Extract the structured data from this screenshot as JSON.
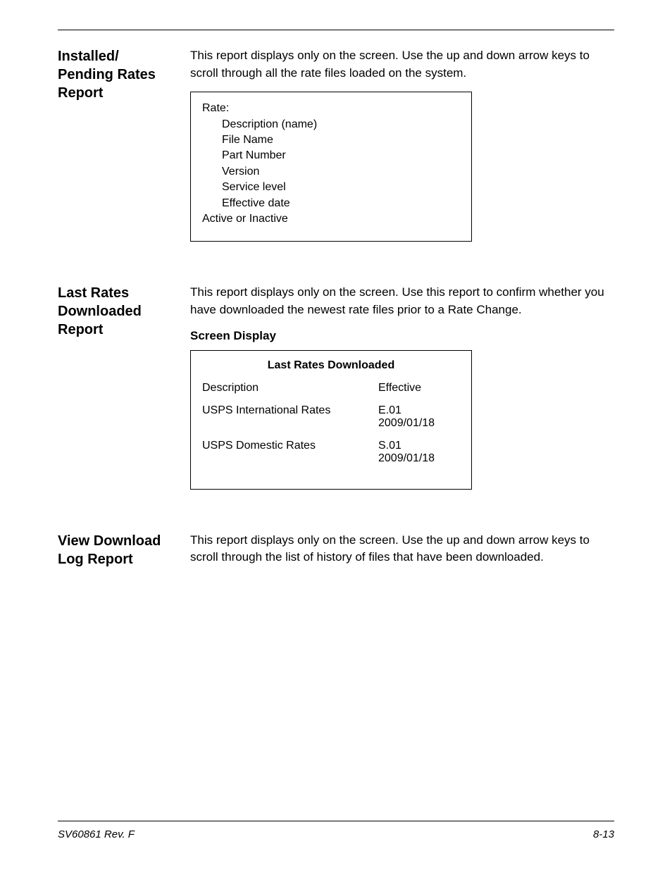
{
  "sections": [
    {
      "heading": "Installed/\nPending Rates Report",
      "paragraph": "This report displays only on the screen. Use the up and down arrow keys to scroll through all the rate files loaded on the system.",
      "box_lines": [
        {
          "text": "Rate:",
          "indent": 1
        },
        {
          "text": "Description (name)",
          "indent": 2
        },
        {
          "text": "File Name",
          "indent": 2
        },
        {
          "text": "Part Number",
          "indent": 2
        },
        {
          "text": "Version",
          "indent": 2
        },
        {
          "text": "Service level",
          "indent": 2
        },
        {
          "text": "Effective date",
          "indent": 2
        },
        {
          "text": "Active or Inactive",
          "indent": 1
        }
      ]
    },
    {
      "heading": "Last Rates Downloaded Report",
      "paragraph": "This report displays only on the screen. Use this report to confirm whether you have downloaded the newest rate files prior to a Rate Change.",
      "sub_heading": "Screen Display",
      "table": {
        "title": "Last Rates Downloaded",
        "header": {
          "a": "Description",
          "b": "Effective"
        },
        "rows": [
          {
            "a": "USPS International Rates",
            "b": "E.01 2009/01/18"
          },
          {
            "a": "USPS Domestic Rates",
            "b": "S.01 2009/01/18"
          }
        ]
      }
    },
    {
      "heading": "View Download Log Report",
      "paragraph": "This report displays only on the screen. Use the up and down arrow keys to scroll through  the list of history of files that have been downloaded."
    }
  ],
  "footer": {
    "left": "SV60861 Rev. F",
    "right": "8-13"
  }
}
